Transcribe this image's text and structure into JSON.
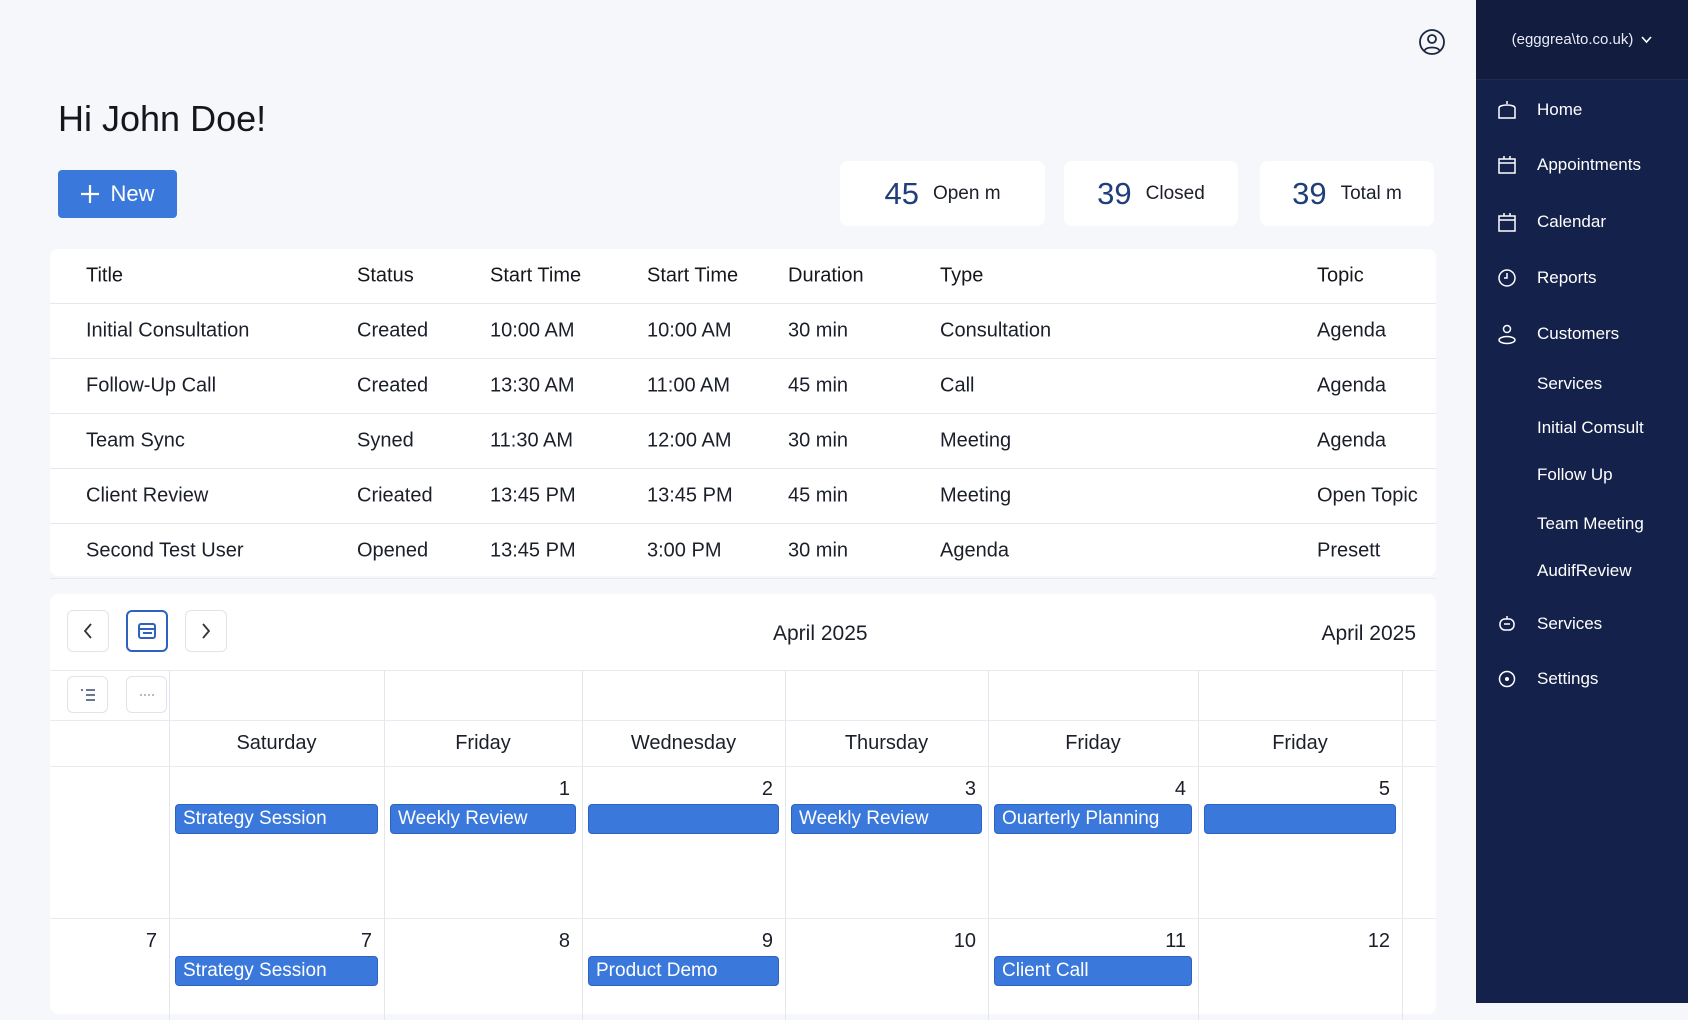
{
  "header": {
    "greeting": "Hi John Doe!",
    "new_label": "New"
  },
  "stats": [
    {
      "value": "45",
      "label": "Open m"
    },
    {
      "value": "39",
      "label": "Closed"
    },
    {
      "value": "39",
      "label": "Total m"
    }
  ],
  "table": {
    "columns": [
      "Title",
      "Status",
      "Start Time",
      "Start Time",
      "Duration",
      "Type",
      "Topic"
    ],
    "rows": [
      [
        "Initial Consultation",
        "Created",
        "10:00 AM",
        "10:00 AM",
        "30 min",
        "Consultation",
        "Agenda"
      ],
      [
        "Follow-Up Call",
        "Created",
        "13:30 AM",
        "11:00 AM",
        "45 min",
        "Call",
        "Agenda"
      ],
      [
        "Team Sync",
        "Syned",
        "11:30 AM",
        "12:00 AM",
        "30 min",
        "Meeting",
        "Agenda"
      ],
      [
        "Client Review",
        "Crieated",
        "13:45 PM",
        "13:45 PM",
        "45 min",
        "Meeting",
        "Open Topic"
      ],
      [
        "Second Test User",
        "Opened",
        "13:45 PM",
        "3:00 PM",
        "30 min",
        "Agenda",
        "Presett"
      ]
    ]
  },
  "calendar": {
    "month_center": "April 2025",
    "month_right": "April 2025",
    "days": [
      "",
      "Saturday",
      "Friday",
      "Wednesday",
      "Thursday",
      "Friday",
      "Friday"
    ],
    "weeks": [
      {
        "numbers": [
          "",
          "",
          "1",
          "2",
          "3",
          "4",
          "5"
        ],
        "events": [
          null,
          "Strategy Session",
          "Weekly Review",
          "",
          "Weekly Review",
          "Ouarterly Planning",
          ""
        ]
      },
      {
        "numbers": [
          "7",
          "7",
          "8",
          "9",
          "10",
          "11",
          "12"
        ],
        "events": [
          null,
          "Strategy Session",
          null,
          "Product Demo",
          null,
          "Client Call",
          null
        ]
      }
    ]
  },
  "sidebar": {
    "account": "(egggrea\\to.co.uk)",
    "items": [
      {
        "label": "Home",
        "icon": "home-icon"
      },
      {
        "label": "Appointments",
        "icon": "calendar-box-icon"
      },
      {
        "label": "Calendar",
        "icon": "calendar-icon"
      },
      {
        "label": "Reports",
        "icon": "clock-icon"
      },
      {
        "label": "Customers",
        "icon": "user-icon"
      },
      {
        "label": "Services",
        "icon": null
      },
      {
        "label": "Initial Comsult",
        "icon": null
      },
      {
        "label": "Follow Up",
        "icon": null
      },
      {
        "label": "Team Meeting",
        "icon": null
      },
      {
        "label": "AudifReview",
        "icon": null
      },
      {
        "label": "Services",
        "icon": "services-icon"
      },
      {
        "label": "Settings",
        "icon": "gear-icon"
      }
    ]
  },
  "colors": {
    "accent": "#3a78dc",
    "sidebar": "#14214a",
    "stat_number": "#1f3e7a"
  }
}
